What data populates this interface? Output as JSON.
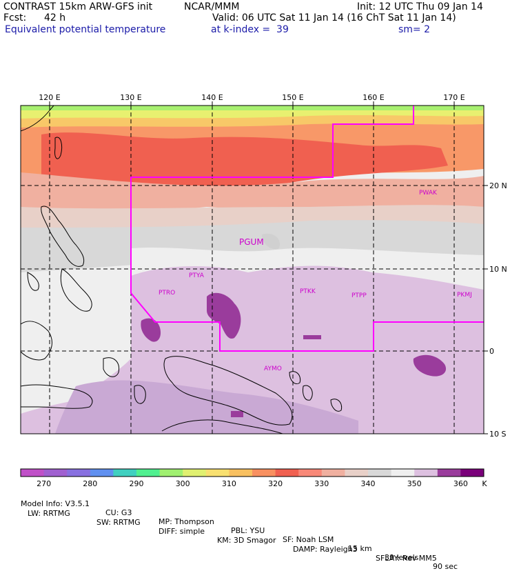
{
  "header": {
    "model": "CONTRAST 15km ARW-GFS init",
    "org": "NCAR/MMM",
    "init": "Init: 12 UTC Thu 09 Jan 14",
    "fcst_label": "Fcst:",
    "fcst_value": "42 h",
    "valid": "Valid: 06 UTC Sat 11 Jan 14 (16 ChT Sat 11 Jan 14)",
    "field": "Equivalent potential temperature",
    "level": "at k-index =  39",
    "smoothing": "sm= 2"
  },
  "map": {
    "lon_labels": [
      "120 E",
      "130 E",
      "140 E",
      "150 E",
      "160 E",
      "170 E"
    ],
    "lat_labels": [
      "20 N",
      "10 N",
      "0",
      "10 S"
    ],
    "stations": [
      {
        "id": "PWAK"
      },
      {
        "id": "PGUM"
      },
      {
        "id": "PTYA"
      },
      {
        "id": "PTRO"
      },
      {
        "id": "PTKK"
      },
      {
        "id": "PTPP"
      },
      {
        "id": "PKMJ"
      },
      {
        "id": "AYMO"
      }
    ],
    "boundary_color": "#ff00ff"
  },
  "colorbar": {
    "labels": [
      "270",
      "280",
      "290",
      "300",
      "310",
      "320",
      "330",
      "340",
      "350",
      "360"
    ],
    "unit": "K",
    "colors": [
      "#c050c8",
      "#a060d0",
      "#8870e0",
      "#6090f0",
      "#40d0c0",
      "#50f090",
      "#a0f070",
      "#e0f070",
      "#f8e070",
      "#f8c060",
      "#f89060",
      "#f06050",
      "#f88878",
      "#f0b0a0",
      "#e8d0c8",
      "#d8d8d8",
      "#efefef",
      "#ddc0e0",
      "#9a3c9c",
      "#7a007a"
    ]
  },
  "footer": {
    "line1": [
      "Model Info: V3.5.1",
      "CU: G3",
      "MP: Thompson",
      "PBL: YSU",
      "SF: Noah LSM",
      "15 km",
      "39 levels",
      "90 sec"
    ],
    "line2": [
      "LW: RRTMG",
      "SW: RRTMG",
      "DIFF: simple",
      "KM: 3D Smagor",
      "DAMP: Rayleigh3",
      "SFLAY: Rev MM5"
    ]
  }
}
